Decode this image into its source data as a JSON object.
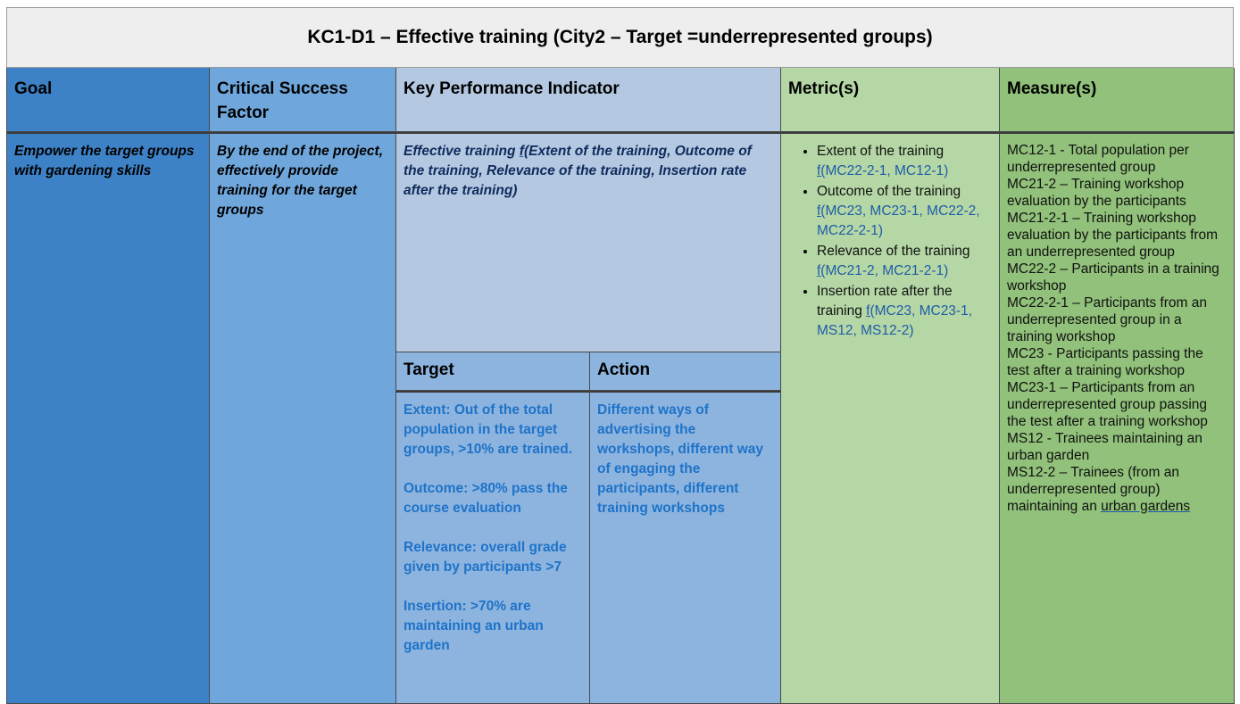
{
  "title": "KC1-D1 – Effective training (City2 – Target =underrepresented groups)",
  "headers": {
    "goal": "Goal",
    "csf": "Critical Success Factor",
    "kpi": "Key Performance Indicator",
    "metrics": "Metric(s)",
    "measures": "Measure(s)",
    "target": "Target",
    "action": "Action"
  },
  "goal": "Empower the target groups with gardening skills",
  "csf": "By the end of the project, effectively provide training for the target groups",
  "kpi": {
    "prefix": "Effective training ",
    "fn": "f(",
    "rest": "Extent of the training, Outcome of the training, Relevance of the training, Insertion rate after the training)"
  },
  "target": [
    "Extent: Out of the total population in the target groups,  >10% are trained.",
    "Outcome: >80% pass the course evaluation",
    "Relevance: overall grade given by participants >7",
    "Insertion: >70% are maintaining an urban garden"
  ],
  "action": "Different ways of advertising the workshops, different way of engaging the participants, different training workshops",
  "metrics": [
    {
      "name": "Extent of the training",
      "fn": "f(",
      "refs": "MC22-2-1, MC12-1)"
    },
    {
      "name": "Outcome of the training",
      "fn": "f(",
      "refs": "MC23, MC23-1, MC22-2, MC22-2-1)"
    },
    {
      "name": "Relevance of the training",
      "fn": "f(",
      "refs": "MC21-2, MC21-2-1)"
    },
    {
      "name": "Insertion rate after the training",
      "fn": "f(",
      "refs": "MC23, MC23-1, MS12, MS12-2)"
    }
  ],
  "measures": [
    "MC12-1 - Total population per underrepresented group",
    "MC21-2 – Training workshop evaluation by the participants",
    "MC21-2-1 – Training workshop evaluation by the participants from an underrepresented group",
    "MC22-2 – Participants in a training workshop",
    "MC22-2-1 – Participants from an underrepresented group in a training workshop",
    "MC23 - Participants passing the test after a training workshop",
    "MC23-1 – Participants from an underrepresented group passing the test after a training workshop",
    "MS12 - Trainees maintaining an urban garden"
  ],
  "measure_last": {
    "text": "MS12-2 – Trainees (from an underrepresented group) maintaining an ",
    "underlined": "urban gardens"
  }
}
